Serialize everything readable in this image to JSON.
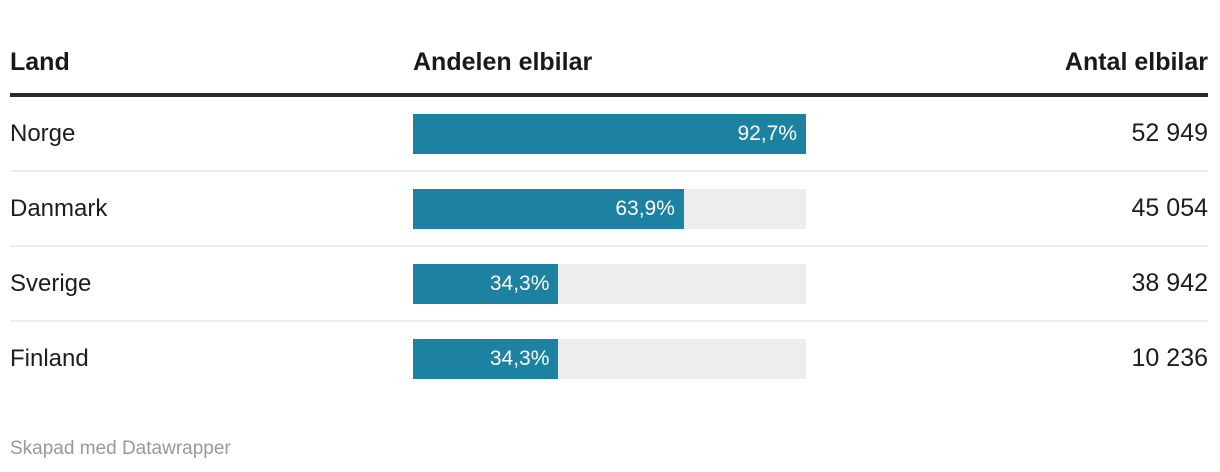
{
  "header": {
    "col_land": "Land",
    "col_share": "Andelen elbilar",
    "col_count": "Antal elbilar"
  },
  "chart_data": {
    "type": "bar",
    "title": "",
    "columns": [
      "Land",
      "Andelen elbilar",
      "Antal elbilar"
    ],
    "bar_scale_max": 92.7,
    "rows": [
      {
        "land": "Norge",
        "share_value": 92.7,
        "share_label": "92,7%",
        "count": "52 949"
      },
      {
        "land": "Danmark",
        "share_value": 63.9,
        "share_label": "63,9%",
        "count": "45 054"
      },
      {
        "land": "Sverige",
        "share_value": 34.3,
        "share_label": "34,3%",
        "count": "38 942"
      },
      {
        "land": "Finland",
        "share_value": 34.3,
        "share_label": "34,3%",
        "count": "10 236"
      }
    ],
    "colors": {
      "bar_fill": "#1d81a2",
      "bar_track": "#ededed",
      "header_rule": "#2b2b2b",
      "row_divider": "#ececec",
      "footer_text": "#999999"
    },
    "legend_position": "none",
    "grid": false
  },
  "footer": {
    "attribution": "Skapad med Datawrapper"
  }
}
